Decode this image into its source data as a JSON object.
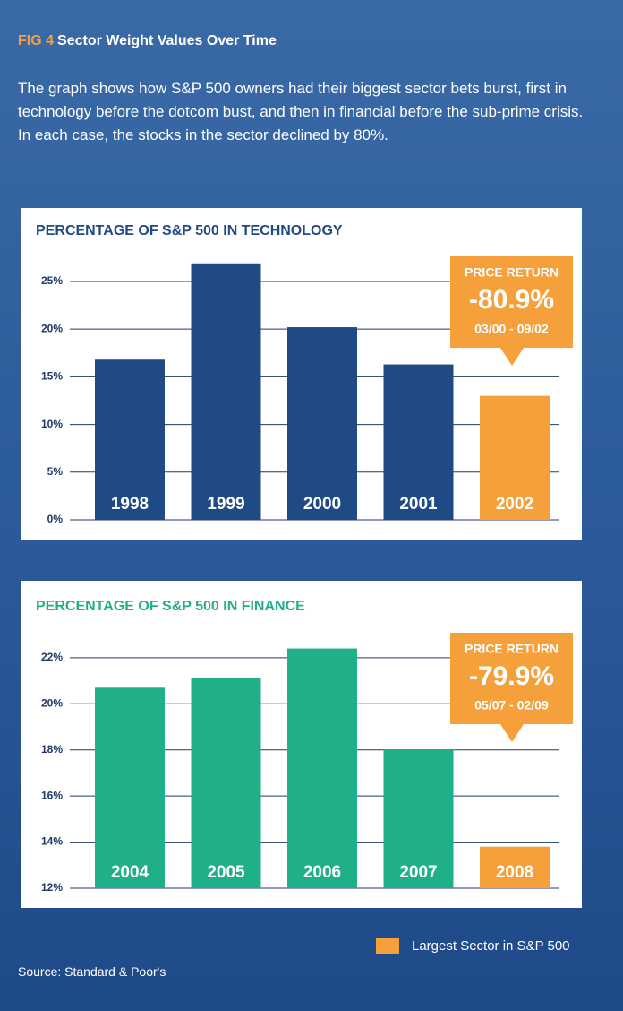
{
  "figure_label": "FIG 4",
  "figure_title": "Sector Weight Values Over Time",
  "description": "The graph shows how S&P 500 owners had their biggest sector bets burst, first in technology before the dotcom bust, and then in financial before the sub-prime crisis. In each case, the stocks in the sector declined by 80%.",
  "legend": {
    "label": "Largest Sector in S&P 500",
    "color": "#f5a03a"
  },
  "source": "Source: Standard & Poor's",
  "chart_data": [
    {
      "type": "bar",
      "title": "PERCENTAGE OF S&P 500 IN TECHNOLOGY",
      "title_color": "#1f4a86",
      "categories": [
        "1998",
        "1999",
        "2000",
        "2001",
        "2002"
      ],
      "values": [
        16.8,
        26.9,
        20.2,
        16.3,
        13.0
      ],
      "colors": [
        "#1f4a86",
        "#1f4a86",
        "#1f4a86",
        "#1f4a86",
        "#f5a03a"
      ],
      "ylim": [
        0,
        27
      ],
      "yticks": [
        {
          "value": 0,
          "label": "0%"
        },
        {
          "value": 5,
          "label": "5%"
        },
        {
          "value": 10,
          "label": "10%"
        },
        {
          "value": 15,
          "label": "15%"
        },
        {
          "value": 20,
          "label": "20%"
        },
        {
          "value": 25,
          "label": "25%"
        }
      ],
      "grid": true,
      "annotation": {
        "title": "PRICE RETURN",
        "value": "-80.9%",
        "period": "03/00 - 09/02"
      }
    },
    {
      "type": "bar",
      "title": "PERCENTAGE OF S&P 500 IN FINANCE",
      "title_color": "#1fae8a",
      "categories": [
        "2004",
        "2005",
        "2006",
        "2007",
        "2008"
      ],
      "values": [
        20.7,
        21.1,
        22.4,
        18.0,
        13.8
      ],
      "colors": [
        "#1fb08a",
        "#1fb08a",
        "#1fb08a",
        "#1fb08a",
        "#f5a03a"
      ],
      "ylim": [
        12,
        22.5
      ],
      "yticks": [
        {
          "value": 12,
          "label": "12%"
        },
        {
          "value": 14,
          "label": "14%"
        },
        {
          "value": 16,
          "label": "16%"
        },
        {
          "value": 18,
          "label": "18%"
        },
        {
          "value": 20,
          "label": "20%"
        },
        {
          "value": 22,
          "label": "22%"
        }
      ],
      "grid": true,
      "annotation": {
        "title": "PRICE RETURN",
        "value": "-79.9%",
        "period": "05/07 - 02/09"
      }
    }
  ]
}
